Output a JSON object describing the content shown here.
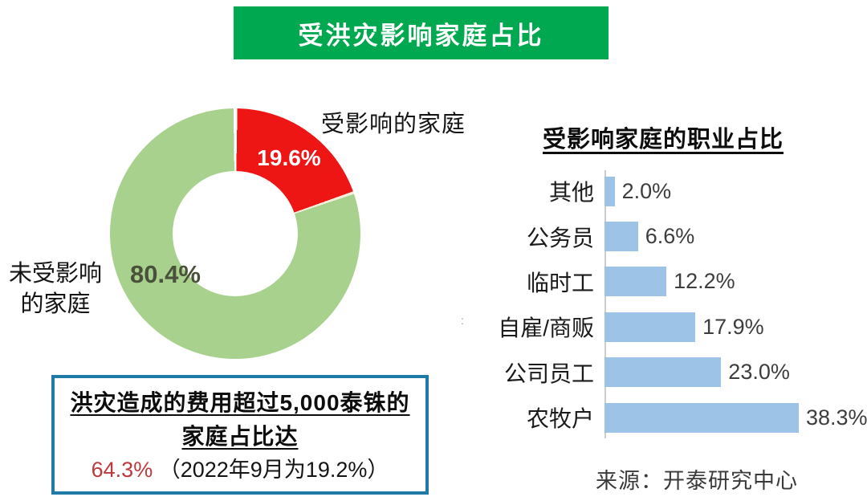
{
  "banner": {
    "title": "受洪灾影响家庭占比",
    "bg_color": "#00a84f",
    "text_color": "#ffffff"
  },
  "donut": {
    "affected_label": "受影响的家庭",
    "affected_pct_label": "19.6%",
    "unaffected_label_line1": "未受影响",
    "unaffected_label_line2": "的家庭",
    "unaffected_pct_label": "80.4%",
    "affected_color": "#ee1515",
    "unaffected_color": "#a9d18e"
  },
  "info_box": {
    "line1": "洪灾造成的费用超过5,000泰铢的",
    "line2": "家庭占比达",
    "highlight": "64.3%",
    "suffix": "（2022年9月为19.2%）",
    "border_color": "#1f7aa6",
    "highlight_color": "#bc393d"
  },
  "bar_chart": {
    "title": "受影响家庭的职业占比",
    "bar_color": "#9dc3e6"
  },
  "source": {
    "text": "来源：开泰研究中心"
  },
  "stray_mark": ":",
  "chart_data": [
    {
      "type": "pie",
      "subtype": "donut",
      "title": "受洪灾影响家庭占比",
      "start_angle_deg": 0,
      "direction": "clockwise",
      "hole_ratio": 0.5,
      "slices": [
        {
          "label": "受影响的家庭",
          "value": 19.6,
          "value_label": "19.6%",
          "color": "#ee1515"
        },
        {
          "label": "未受影响的家庭",
          "value": 80.4,
          "value_label": "80.4%",
          "color": "#a9d18e"
        }
      ]
    },
    {
      "type": "bar",
      "orientation": "horizontal",
      "title": "受影响家庭的职业占比",
      "categories": [
        "其他",
        "公务员",
        "临时工",
        "自雇/商贩",
        "公司员工",
        "农牧户"
      ],
      "values": [
        2.0,
        6.6,
        12.2,
        17.9,
        23.0,
        38.3
      ],
      "value_labels": [
        "2.0%",
        "6.6%",
        "12.2%",
        "17.9%",
        "23.0%",
        "38.3%"
      ],
      "bar_color": "#9dc3e6",
      "xlim": [
        0,
        42
      ],
      "grid": false,
      "legend": false,
      "value_label_position": "end-of-bar"
    }
  ]
}
